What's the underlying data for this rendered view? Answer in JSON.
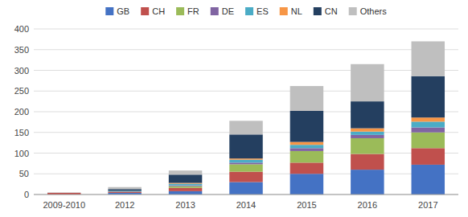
{
  "chart_data": {
    "type": "bar",
    "stacked": true,
    "categories": [
      "2009-2010",
      "2012",
      "2013",
      "2014",
      "2015",
      "2016",
      "2017"
    ],
    "series": [
      {
        "name": "GB",
        "color": "#4472c4",
        "values": [
          0,
          4,
          8,
          30,
          50,
          60,
          72
        ]
      },
      {
        "name": "CH",
        "color": "#c0504d",
        "values": [
          4,
          3,
          8,
          25,
          27,
          38,
          40
        ]
      },
      {
        "name": "FR",
        "color": "#9bbb59",
        "values": [
          0,
          0,
          4,
          18,
          28,
          38,
          38
        ]
      },
      {
        "name": "DE",
        "color": "#8064a2",
        "values": [
          0,
          0,
          2,
          4,
          7,
          8,
          12
        ]
      },
      {
        "name": "ES",
        "color": "#4bacc6",
        "values": [
          0,
          2,
          4,
          7,
          8,
          8,
          14
        ]
      },
      {
        "name": "NL",
        "color": "#f79646",
        "values": [
          0,
          0,
          2,
          3,
          7,
          8,
          10
        ]
      },
      {
        "name": "CN",
        "color": "#243f60",
        "values": [
          0,
          4,
          20,
          58,
          75,
          65,
          100
        ]
      },
      {
        "name": "Others",
        "color": "#bfbfbf",
        "values": [
          1,
          5,
          10,
          33,
          60,
          90,
          84
        ]
      }
    ],
    "ylim": [
      0,
      400
    ],
    "yticks": [
      0,
      50,
      100,
      150,
      200,
      250,
      300,
      350,
      400
    ],
    "grid": true,
    "legend": "top"
  }
}
